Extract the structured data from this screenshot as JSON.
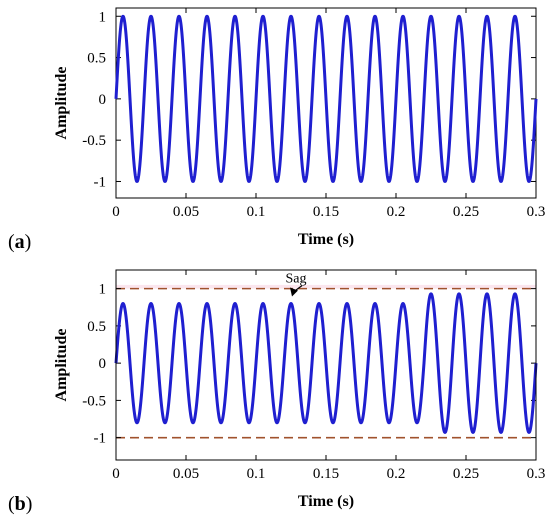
{
  "chart_data": [
    {
      "type": "line",
      "panel_label": "a",
      "xlabel": "Time (s)",
      "ylabel": "Amplitude",
      "xlim": [
        0,
        0.3
      ],
      "ylim": [
        -1.2,
        1.1
      ],
      "xticks": [
        0,
        0.05,
        0.1,
        0.15,
        0.2,
        0.25,
        0.3
      ],
      "xtick_labels": [
        "0",
        "0.05",
        "0.1",
        "0.15",
        "0.2",
        "0.25",
        "0.3"
      ],
      "yticks": [
        1,
        0.5,
        0,
        -0.5,
        -1
      ],
      "ytick_labels": [
        "1",
        "0.5",
        "0",
        "-0.5",
        "-1"
      ],
      "series": [
        {
          "color": "#1f1fd0",
          "frequency_hz": 50,
          "segments": [
            {
              "x_start": 0,
              "x_end": 0.3,
              "amplitude": 1.0
            }
          ]
        }
      ]
    },
    {
      "type": "line",
      "panel_label": "b",
      "xlabel": "Time (s)",
      "ylabel": "Amplitude",
      "xlim": [
        0,
        0.3
      ],
      "ylim": [
        -1.3,
        1.25
      ],
      "xticks": [
        0,
        0.05,
        0.1,
        0.15,
        0.2,
        0.25,
        0.3
      ],
      "xtick_labels": [
        "0",
        "0.05",
        "0.1",
        "0.15",
        "0.2",
        "0.25",
        "0.3"
      ],
      "yticks": [
        1,
        0.5,
        0,
        -0.5,
        -1
      ],
      "ytick_labels": [
        "1",
        "0.5",
        "0",
        "-0.5",
        "-1"
      ],
      "series": [
        {
          "color": "#1f1fd0",
          "frequency_hz": 50,
          "segments": [
            {
              "x_start": 0,
              "x_end": 0.22,
              "amplitude": 0.8
            },
            {
              "x_start": 0.22,
              "x_end": 0.3,
              "amplitude": 0.93
            }
          ]
        }
      ],
      "reference_lines": [
        {
          "y": 1,
          "color": "#a0522d",
          "style": "dashed"
        },
        {
          "y": -1,
          "color": "#a0522d",
          "style": "dashed"
        }
      ],
      "shaded_band": {
        "y_from": 1,
        "y_to": 1.05,
        "color": "#fbe6ee"
      },
      "annotation": {
        "text": "Sag",
        "x": 0.11,
        "y": 0.8
      }
    }
  ]
}
